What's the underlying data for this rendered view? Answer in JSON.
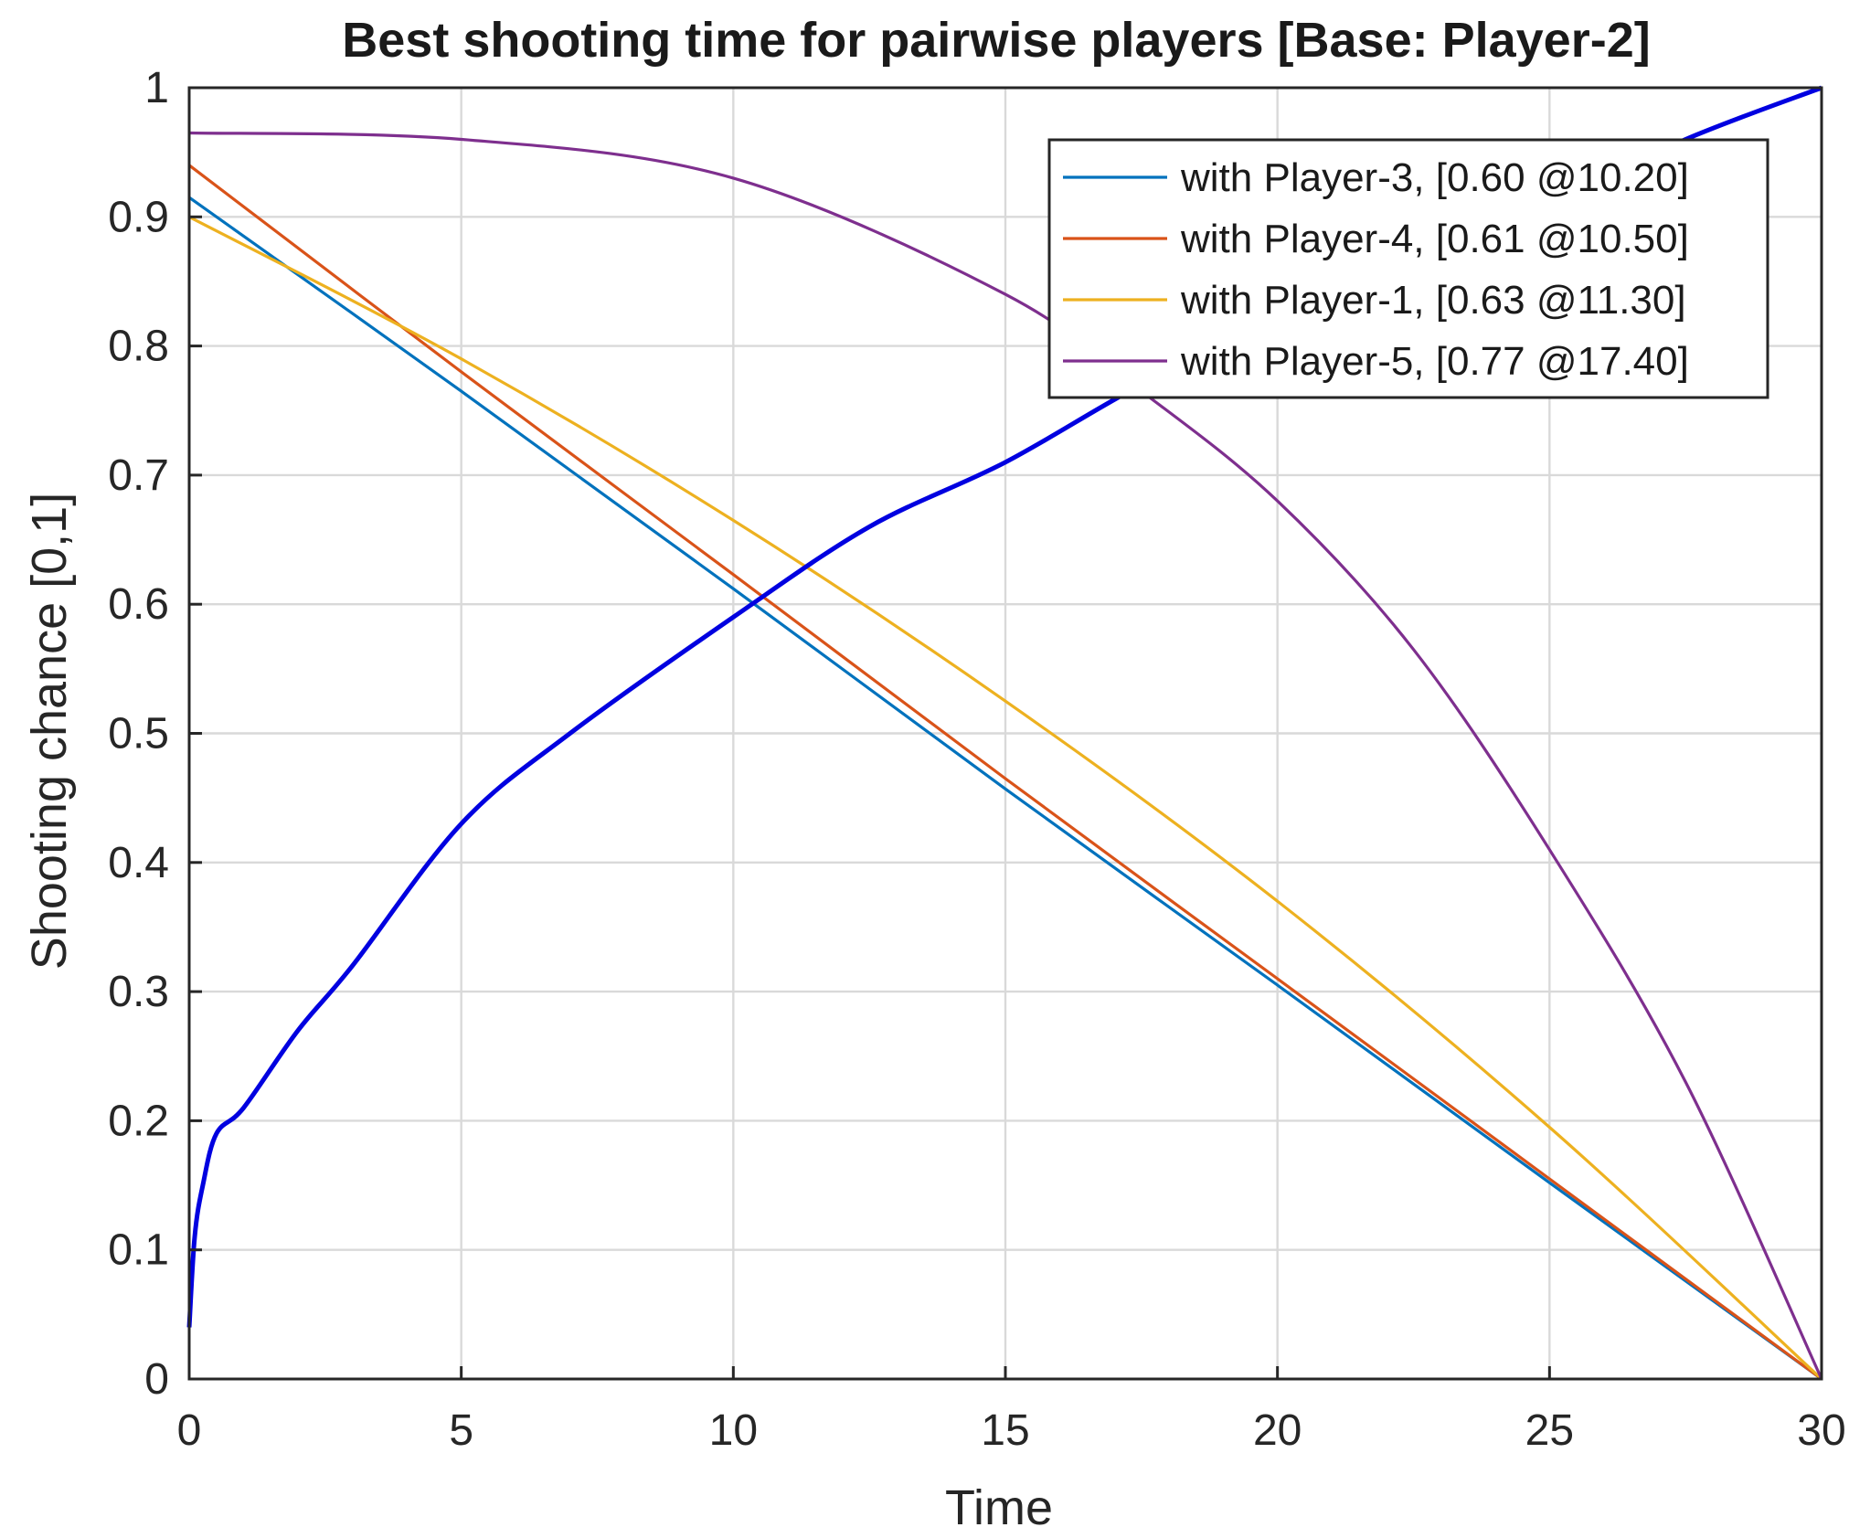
{
  "chart_data": {
    "type": "line",
    "title": "Best shooting time for pairwise players [Base: Player-2]",
    "xlabel": "Time",
    "ylabel": "Shooting chance [0,1]",
    "xlim": [
      0,
      30
    ],
    "ylim": [
      0,
      1
    ],
    "x_ticks": [
      "0",
      "5",
      "10",
      "15",
      "20",
      "25",
      "30"
    ],
    "y_ticks": [
      "0",
      "0.1",
      "0.2",
      "0.3",
      "0.4",
      "0.5",
      "0.6",
      "0.7",
      "0.8",
      "0.9",
      "1"
    ],
    "grid": true,
    "legend_position": "top-right",
    "base_curve": {
      "color": "#0000e0",
      "x": [
        0,
        0.1,
        0.25,
        0.5,
        1,
        2,
        3,
        5,
        7,
        10,
        12.5,
        15,
        17.5,
        20,
        22.5,
        25,
        27.5,
        30
      ],
      "y": [
        0.04,
        0.11,
        0.15,
        0.19,
        0.21,
        0.27,
        0.32,
        0.43,
        0.5,
        0.59,
        0.66,
        0.71,
        0.77,
        0.82,
        0.86,
        0.91,
        0.96,
        1.0
      ]
    },
    "series": [
      {
        "name": "with Player-3, [0.60 @10.20]",
        "color": "#0072bd",
        "x": [
          0,
          5,
          10,
          15,
          20,
          25,
          30
        ],
        "y": [
          0.915,
          0.765,
          0.612,
          0.457,
          0.305,
          0.152,
          0.0
        ]
      },
      {
        "name": "with Player-4, [0.61 @10.50]",
        "color": "#d95319",
        "x": [
          0,
          5,
          10,
          15,
          20,
          25,
          30
        ],
        "y": [
          0.94,
          0.78,
          0.623,
          0.465,
          0.31,
          0.155,
          0.0
        ]
      },
      {
        "name": "with Player-1, [0.63 @11.30]",
        "color": "#edb120",
        "x": [
          0,
          5,
          10,
          15,
          20,
          25,
          30
        ],
        "y": [
          0.9,
          0.79,
          0.665,
          0.525,
          0.37,
          0.195,
          0.0
        ]
      },
      {
        "name": "with Player-5, [0.77 @17.40]",
        "color": "#7e2f8e",
        "x": [
          0,
          5,
          10,
          15,
          17.5,
          20,
          22.5,
          25,
          27.5,
          30
        ],
        "y": [
          0.965,
          0.96,
          0.93,
          0.84,
          0.765,
          0.68,
          0.565,
          0.41,
          0.23,
          0.0
        ]
      }
    ]
  }
}
